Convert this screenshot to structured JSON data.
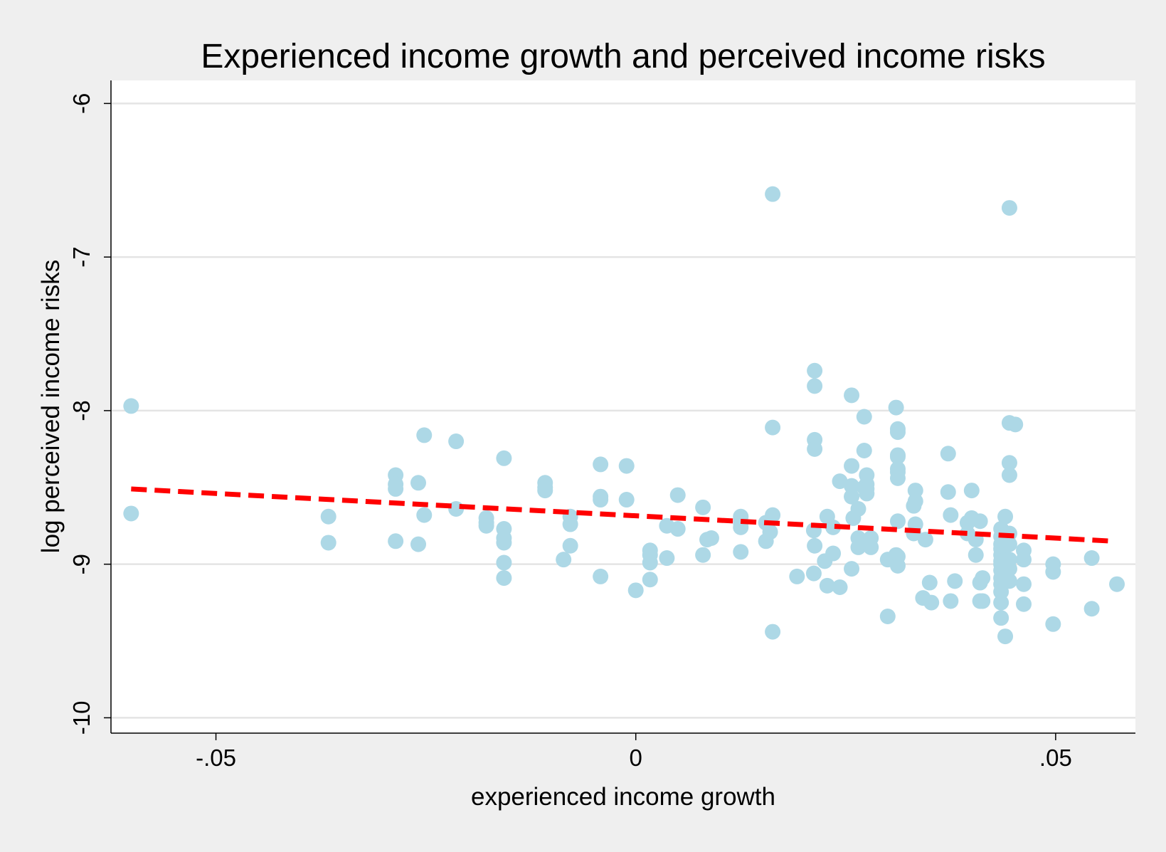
{
  "chart_data": {
    "type": "scatter",
    "title": "Experienced income growth and perceived income risks",
    "xlabel": "experienced income growth",
    "ylabel": "log perceived income risks",
    "xlim": [
      -0.0625,
      0.0595
    ],
    "ylim": [
      -10.1,
      -5.85
    ],
    "xticks": [
      {
        "value": -0.05,
        "label": "-.05"
      },
      {
        "value": 0,
        "label": "0"
      },
      {
        "value": 0.05,
        "label": ".05"
      }
    ],
    "yticks": [
      {
        "value": -6,
        "label": "-6"
      },
      {
        "value": -7,
        "label": "-7"
      },
      {
        "value": -8,
        "label": "-8"
      },
      {
        "value": -9,
        "label": "-9"
      },
      {
        "value": -10,
        "label": "-10"
      }
    ],
    "grid": "horizontal",
    "marker_color": "#add8e6",
    "fit_line_color": "#ff0000",
    "series": [
      {
        "name": "",
        "points": [
          [
            -0.0601,
            -7.97
          ],
          [
            -0.0601,
            -8.67
          ],
          [
            -0.0366,
            -8.69
          ],
          [
            -0.0366,
            -8.86
          ],
          [
            -0.0286,
            -8.42
          ],
          [
            -0.0286,
            -8.48
          ],
          [
            -0.0286,
            -8.51
          ],
          [
            -0.0286,
            -8.85
          ],
          [
            -0.0259,
            -8.47
          ],
          [
            -0.0259,
            -8.87
          ],
          [
            -0.0252,
            -8.16
          ],
          [
            -0.0252,
            -8.68
          ],
          [
            -0.0214,
            -8.2
          ],
          [
            -0.0214,
            -8.64
          ],
          [
            -0.0178,
            -8.7
          ],
          [
            -0.0178,
            -8.73
          ],
          [
            -0.0178,
            -8.75
          ],
          [
            -0.0157,
            -8.31
          ],
          [
            -0.0157,
            -8.77
          ],
          [
            -0.0157,
            -8.83
          ],
          [
            -0.0157,
            -8.86
          ],
          [
            -0.0157,
            -8.99
          ],
          [
            -0.0157,
            -9.09
          ],
          [
            -0.0108,
            -8.47
          ],
          [
            -0.0108,
            -8.5
          ],
          [
            -0.0108,
            -8.52
          ],
          [
            -0.0086,
            -8.97
          ],
          [
            -0.0078,
            -8.69
          ],
          [
            -0.0078,
            -8.74
          ],
          [
            -0.0078,
            -8.88
          ],
          [
            -0.0042,
            -8.35
          ],
          [
            -0.0042,
            -8.56
          ],
          [
            -0.0042,
            -8.58
          ],
          [
            -0.0042,
            -9.08
          ],
          [
            -0.0011,
            -8.36
          ],
          [
            -0.0011,
            -8.58
          ],
          [
            0.0,
            -9.17
          ],
          [
            0.0017,
            -8.91
          ],
          [
            0.0017,
            -8.94
          ],
          [
            0.0017,
            -8.99
          ],
          [
            0.0017,
            -9.1
          ],
          [
            0.0037,
            -8.75
          ],
          [
            0.0037,
            -8.96
          ],
          [
            0.005,
            -8.55
          ],
          [
            0.005,
            -8.77
          ],
          [
            0.008,
            -8.63
          ],
          [
            0.008,
            -8.94
          ],
          [
            0.0085,
            -8.84
          ],
          [
            0.009,
            -8.83
          ],
          [
            0.0125,
            -8.69
          ],
          [
            0.0125,
            -8.73
          ],
          [
            0.0125,
            -8.76
          ],
          [
            0.0125,
            -8.92
          ],
          [
            0.0155,
            -8.73
          ],
          [
            0.0155,
            -8.85
          ],
          [
            0.016,
            -8.79
          ],
          [
            0.0163,
            -6.59
          ],
          [
            0.0163,
            -8.11
          ],
          [
            0.0163,
            -8.68
          ],
          [
            0.0163,
            -9.44
          ],
          [
            0.0192,
            -9.08
          ],
          [
            0.0212,
            -8.78
          ],
          [
            0.0212,
            -9.06
          ],
          [
            0.0213,
            -7.74
          ],
          [
            0.0213,
            -7.84
          ],
          [
            0.0213,
            -8.19
          ],
          [
            0.0213,
            -8.25
          ],
          [
            0.0213,
            -8.88
          ],
          [
            0.0225,
            -8.98
          ],
          [
            0.0228,
            -8.69
          ],
          [
            0.0228,
            -9.14
          ],
          [
            0.0235,
            -8.76
          ],
          [
            0.0235,
            -8.93
          ],
          [
            0.0243,
            -8.46
          ],
          [
            0.0243,
            -9.15
          ],
          [
            0.0257,
            -7.9
          ],
          [
            0.0257,
            -8.36
          ],
          [
            0.0257,
            -8.49
          ],
          [
            0.0257,
            -8.56
          ],
          [
            0.0257,
            -9.03
          ],
          [
            0.0259,
            -8.7
          ],
          [
            0.0265,
            -8.64
          ],
          [
            0.0265,
            -8.83
          ],
          [
            0.0265,
            -8.89
          ],
          [
            0.0272,
            -8.04
          ],
          [
            0.0272,
            -8.26
          ],
          [
            0.0272,
            -8.5
          ],
          [
            0.0275,
            -8.42
          ],
          [
            0.0275,
            -8.48
          ],
          [
            0.0275,
            -8.51
          ],
          [
            0.0275,
            -8.54
          ],
          [
            0.028,
            -8.83
          ],
          [
            0.028,
            -8.89
          ],
          [
            0.03,
            -8.97
          ],
          [
            0.03,
            -9.34
          ],
          [
            0.031,
            -8.98
          ],
          [
            0.031,
            -8.94
          ],
          [
            0.031,
            -7.98
          ],
          [
            0.0312,
            -8.12
          ],
          [
            0.0312,
            -8.14
          ],
          [
            0.0312,
            -8.29
          ],
          [
            0.0312,
            -8.3
          ],
          [
            0.0312,
            -8.38
          ],
          [
            0.0312,
            -8.4
          ],
          [
            0.0312,
            -8.44
          ],
          [
            0.0312,
            -8.72
          ],
          [
            0.0312,
            -8.95
          ],
          [
            0.0312,
            -9.01
          ],
          [
            0.0331,
            -8.62
          ],
          [
            0.0331,
            -8.8
          ],
          [
            0.0333,
            -8.52
          ],
          [
            0.0333,
            -8.59
          ],
          [
            0.0333,
            -8.74
          ],
          [
            0.0342,
            -9.22
          ],
          [
            0.0345,
            -8.84
          ],
          [
            0.035,
            -9.12
          ],
          [
            0.0352,
            -9.25
          ],
          [
            0.0372,
            -8.28
          ],
          [
            0.0372,
            -8.53
          ],
          [
            0.0375,
            -8.68
          ],
          [
            0.0375,
            -9.24
          ],
          [
            0.038,
            -9.11
          ],
          [
            0.0395,
            -8.73
          ],
          [
            0.0395,
            -8.8
          ],
          [
            0.04,
            -8.52
          ],
          [
            0.04,
            -8.7
          ],
          [
            0.0405,
            -8.84
          ],
          [
            0.0405,
            -8.94
          ],
          [
            0.041,
            -8.72
          ],
          [
            0.041,
            -9.12
          ],
          [
            0.041,
            -9.24
          ],
          [
            0.0413,
            -9.09
          ],
          [
            0.0413,
            -9.24
          ],
          [
            0.0435,
            -8.77
          ],
          [
            0.0435,
            -8.82
          ],
          [
            0.0435,
            -8.87
          ],
          [
            0.0435,
            -8.9
          ],
          [
            0.0435,
            -8.94
          ],
          [
            0.0435,
            -8.98
          ],
          [
            0.0435,
            -9.0
          ],
          [
            0.0435,
            -9.04
          ],
          [
            0.0435,
            -9.09
          ],
          [
            0.0435,
            -9.13
          ],
          [
            0.0435,
            -9.18
          ],
          [
            0.0435,
            -9.25
          ],
          [
            0.0435,
            -9.35
          ],
          [
            0.044,
            -8.69
          ],
          [
            0.044,
            -9.47
          ],
          [
            0.0445,
            -6.68
          ],
          [
            0.0445,
            -8.08
          ],
          [
            0.0445,
            -8.34
          ],
          [
            0.0445,
            -8.42
          ],
          [
            0.0445,
            -8.8
          ],
          [
            0.0445,
            -8.87
          ],
          [
            0.0445,
            -8.97
          ],
          [
            0.0445,
            -9.03
          ],
          [
            0.0445,
            -9.11
          ],
          [
            0.0452,
            -8.09
          ],
          [
            0.0462,
            -8.91
          ],
          [
            0.0462,
            -8.97
          ],
          [
            0.0462,
            -9.13
          ],
          [
            0.0462,
            -9.26
          ],
          [
            0.0497,
            -9.0
          ],
          [
            0.0497,
            -9.05
          ],
          [
            0.0497,
            -9.39
          ],
          [
            0.0543,
            -8.96
          ],
          [
            0.0543,
            -9.29
          ],
          [
            0.0573,
            -9.13
          ]
        ]
      }
    ],
    "fit_line": {
      "x": [
        -0.0601,
        0.0568
      ],
      "y": [
        -8.51,
        -8.85
      ],
      "style": "dashed"
    }
  }
}
